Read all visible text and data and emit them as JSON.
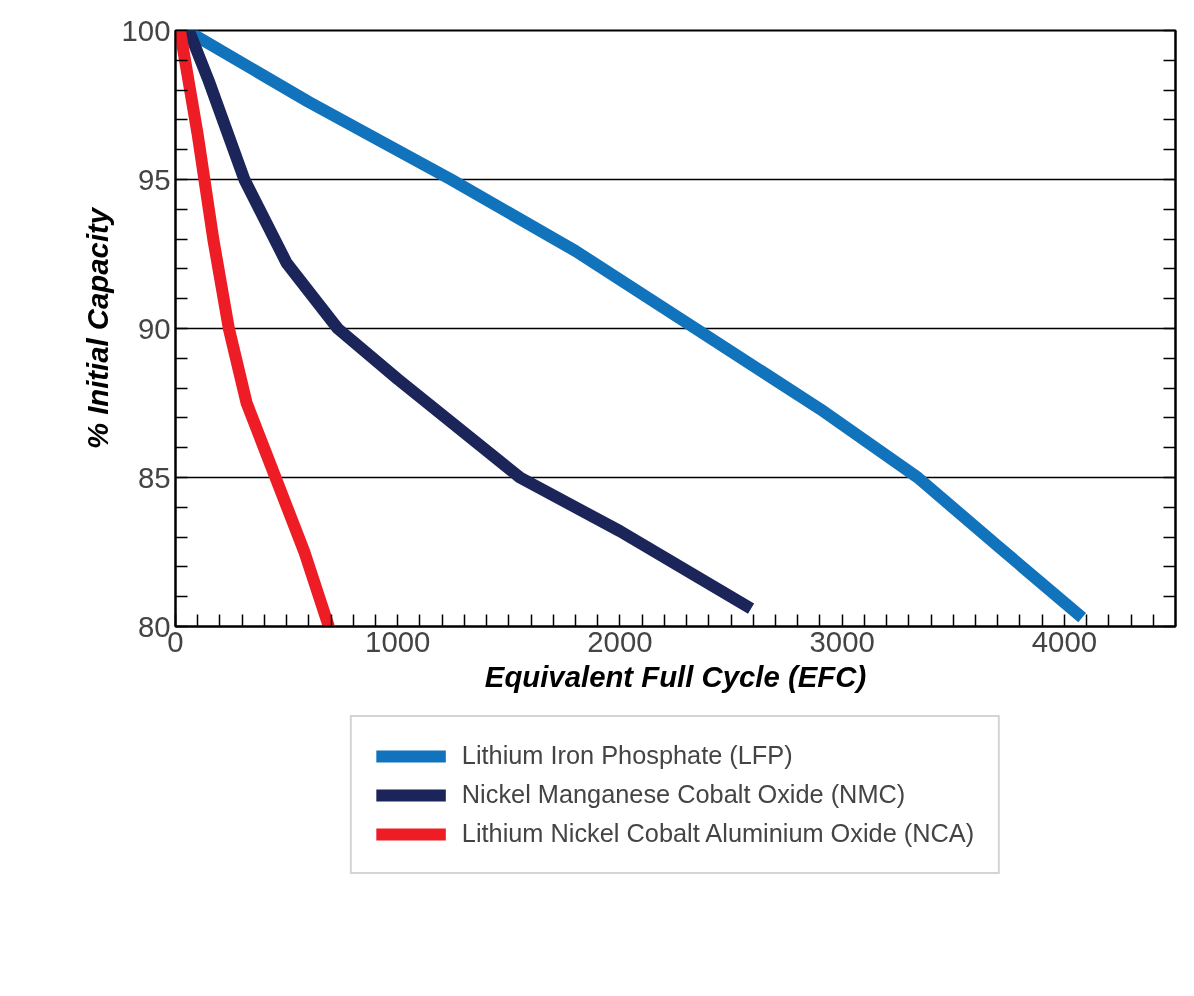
{
  "chart_data": {
    "type": "line",
    "xlabel": "Equivalent Full Cycle (EFC)",
    "ylabel": "% Initial Capacity",
    "xlim": [
      0,
      4500
    ],
    "ylim": [
      80,
      100
    ],
    "xticks": [
      0,
      1000,
      2000,
      3000,
      4000,
      {
        "value": 100,
        "label": null
      },
      {
        "value": 200,
        "label": null
      },
      {
        "value": 300,
        "label": null
      },
      {
        "value": 400,
        "label": null
      },
      {
        "value": 500,
        "label": null
      },
      {
        "value": 600,
        "label": null
      },
      {
        "value": 700,
        "label": null
      },
      {
        "value": 800,
        "label": null
      },
      {
        "value": 900,
        "label": null
      },
      {
        "value": 1100,
        "label": null
      },
      {
        "value": 1200,
        "label": null
      },
      {
        "value": 1300,
        "label": null
      },
      {
        "value": 1400,
        "label": null
      },
      {
        "value": 1500,
        "label": null
      },
      {
        "value": 1600,
        "label": null
      },
      {
        "value": 1700,
        "label": null
      },
      {
        "value": 1800,
        "label": null
      },
      {
        "value": 1900,
        "label": null
      },
      {
        "value": 2100,
        "label": null
      },
      {
        "value": 2200,
        "label": null
      },
      {
        "value": 2300,
        "label": null
      },
      {
        "value": 2400,
        "label": null
      },
      {
        "value": 2500,
        "label": null
      },
      {
        "value": 2600,
        "label": null
      },
      {
        "value": 2700,
        "label": null
      },
      {
        "value": 2800,
        "label": null
      },
      {
        "value": 2900,
        "label": null
      },
      {
        "value": 3100,
        "label": null
      },
      {
        "value": 3200,
        "label": null
      },
      {
        "value": 3300,
        "label": null
      },
      {
        "value": 3400,
        "label": null
      },
      {
        "value": 3500,
        "label": null
      },
      {
        "value": 3600,
        "label": null
      },
      {
        "value": 3700,
        "label": null
      },
      {
        "value": 3800,
        "label": null
      },
      {
        "value": 3900,
        "label": null
      },
      {
        "value": 4100,
        "label": null
      },
      {
        "value": 4200,
        "label": null
      },
      {
        "value": 4300,
        "label": null
      },
      {
        "value": 4400,
        "label": null
      }
    ],
    "yticks": [
      80,
      85,
      90,
      95,
      100,
      {
        "value": 81,
        "label": null
      },
      {
        "value": 82,
        "label": null
      },
      {
        "value": 83,
        "label": null
      },
      {
        "value": 84,
        "label": null
      },
      {
        "value": 86,
        "label": null
      },
      {
        "value": 87,
        "label": null
      },
      {
        "value": 88,
        "label": null
      },
      {
        "value": 89,
        "label": null
      },
      {
        "value": 91,
        "label": null
      },
      {
        "value": 92,
        "label": null
      },
      {
        "value": 93,
        "label": null
      },
      {
        "value": 94,
        "label": null
      },
      {
        "value": 96,
        "label": null
      },
      {
        "value": 97,
        "label": null
      },
      {
        "value": 98,
        "label": null
      },
      {
        "value": 99,
        "label": null
      }
    ],
    "grid": "y",
    "legend": "bottom",
    "line_style": "solid",
    "marker": "none",
    "series": [
      {
        "name": "Lithium Iron Phosphate (LFP)",
        "color": "#1273bd",
        "x": [
          50,
          600,
          1240,
          1800,
          2340,
          2900,
          3340,
          3700,
          4080
        ],
        "values": [
          100,
          97.6,
          95,
          92.6,
          90,
          87.3,
          85,
          82.7,
          80.3
        ]
      },
      {
        "name": "Nickel Manganese Cobalt Oxide (NMC)",
        "color": "#1c2559",
        "x": [
          60,
          150,
          310,
          500,
          730,
          1000,
          1550,
          2000,
          2590
        ],
        "values": [
          100,
          98.3,
          95,
          92.2,
          90,
          88.3,
          85,
          83.2,
          80.6
        ]
      },
      {
        "name": "Lithium Nickel Cobalt Aluminium Oxide (NCA)",
        "color": "#ee1c24",
        "x": [
          20,
          100,
          170,
          240,
          320,
          450,
          580,
          690
        ],
        "values": [
          100,
          96.5,
          93,
          90,
          87.5,
          85,
          82.5,
          80
        ]
      }
    ]
  }
}
